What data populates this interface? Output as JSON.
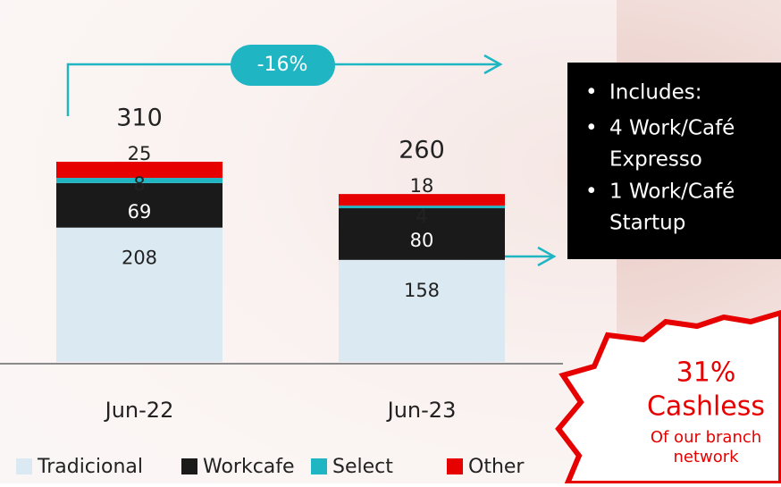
{
  "chart_data": {
    "type": "stacked_bar",
    "categories": [
      "Jun-22",
      "Jun-23"
    ],
    "series": [
      {
        "name": "Tradicional",
        "color": "#dbeaf2",
        "values": [
          208,
          158
        ]
      },
      {
        "name": "Workcafe",
        "color": "#1a1a1a",
        "values": [
          69,
          80
        ]
      },
      {
        "name": "Select",
        "color": "#1fb5c2",
        "values": [
          8,
          4
        ]
      },
      {
        "name": "Other",
        "color": "#e60000",
        "values": [
          25,
          18
        ]
      }
    ],
    "totals": [
      310,
      260
    ],
    "change_label": "-16%",
    "callout": [
      "Includes:",
      "4 Work/Café Expresso",
      "1 Work/Café Startup"
    ],
    "badge": {
      "value": "31%",
      "title": "Cashless",
      "subtitle": "Of our branch network"
    }
  }
}
